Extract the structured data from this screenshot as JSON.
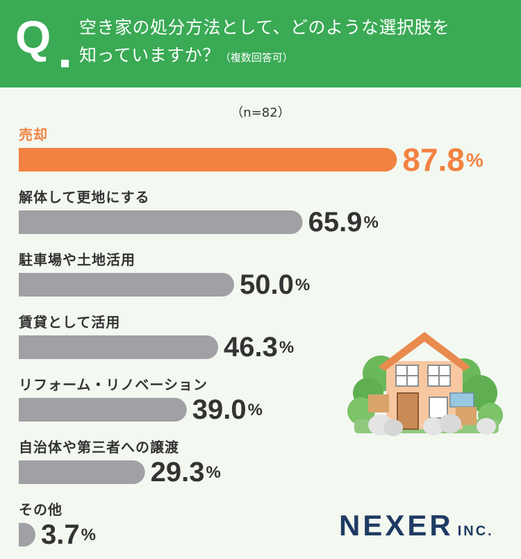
{
  "header": {
    "q_mark": "Q",
    "title_line1": "空き家の処分方法として、どのような選択肢を",
    "title_line2": "知っていますか？",
    "title_note": "（複数回答可）"
  },
  "sample_size": "（n=82）",
  "brand": {
    "name": "NEXER",
    "suffix": "INC."
  },
  "colors": {
    "header": "#3aaa55",
    "highlight": "#f28241",
    "bar": "#a0a0a5",
    "text": "#333333",
    "background": "#f3f8f0"
  },
  "chart_data": {
    "type": "bar",
    "orientation": "horizontal",
    "categories": [
      "売却",
      "解体して更地にする",
      "駐車場や土地活用",
      "賃貸として活用",
      "リフォーム・リノベーション",
      "自治体や第三者への譲渡",
      "その他"
    ],
    "values": [
      87.8,
      65.9,
      50.0,
      46.3,
      39.0,
      29.3,
      3.7
    ],
    "value_labels": [
      "87.8",
      "65.9",
      "50.0",
      "46.3",
      "39.0",
      "29.3",
      "3.7"
    ],
    "unit": "%",
    "highlight_index": 0,
    "xlim": [
      0,
      100
    ]
  }
}
